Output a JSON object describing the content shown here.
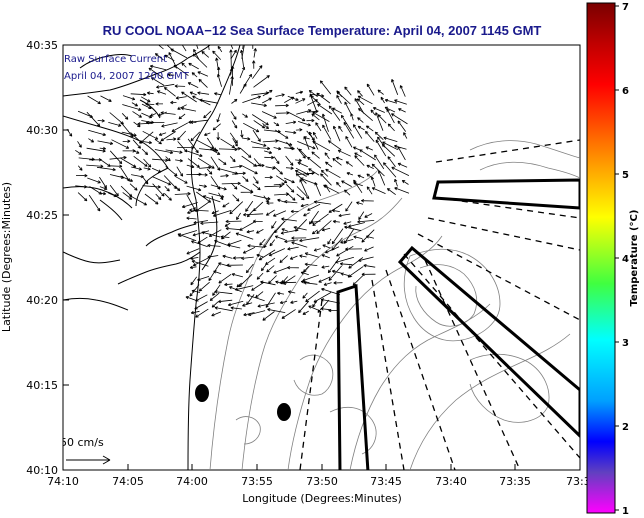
{
  "map": {
    "title": "RU COOL  NOAA−12  Sea Surface Temperature:  April 04, 2007 1145 GMT",
    "overlay_line1": "Raw Surface Current",
    "overlay_line2": "April 04, 2007 1200 GMT",
    "xlabel": "Longitude (Degrees:Minutes)",
    "ylabel": "Latitude (Degrees:Minutes)",
    "x_ticks": [
      "74:10",
      "74:05",
      "74:00",
      "73:55",
      "73:50",
      "73:45",
      "73:40",
      "73:35",
      "73:3"
    ],
    "y_ticks": [
      "40:35",
      "40:30",
      "40:25",
      "40:20",
      "40:15",
      "40:10"
    ],
    "scale_label": "50 cm/s",
    "colors": {
      "title": "#1a1a8c",
      "background": "#ffffff",
      "lines": "#000000",
      "bathymetry": "#808080"
    },
    "markers": [
      "buoy-marker-1",
      "buoy-marker-2"
    ]
  },
  "colorbar": {
    "label": "Temperature (°C)",
    "ticks": [
      "7",
      "6",
      "5",
      "4",
      "3",
      "2",
      "1"
    ],
    "colors": [
      "#8b0000",
      "#ff0000",
      "#ff8000",
      "#ffff00",
      "#00ff00",
      "#00ffff",
      "#0000ff",
      "#ff00ff"
    ]
  }
}
